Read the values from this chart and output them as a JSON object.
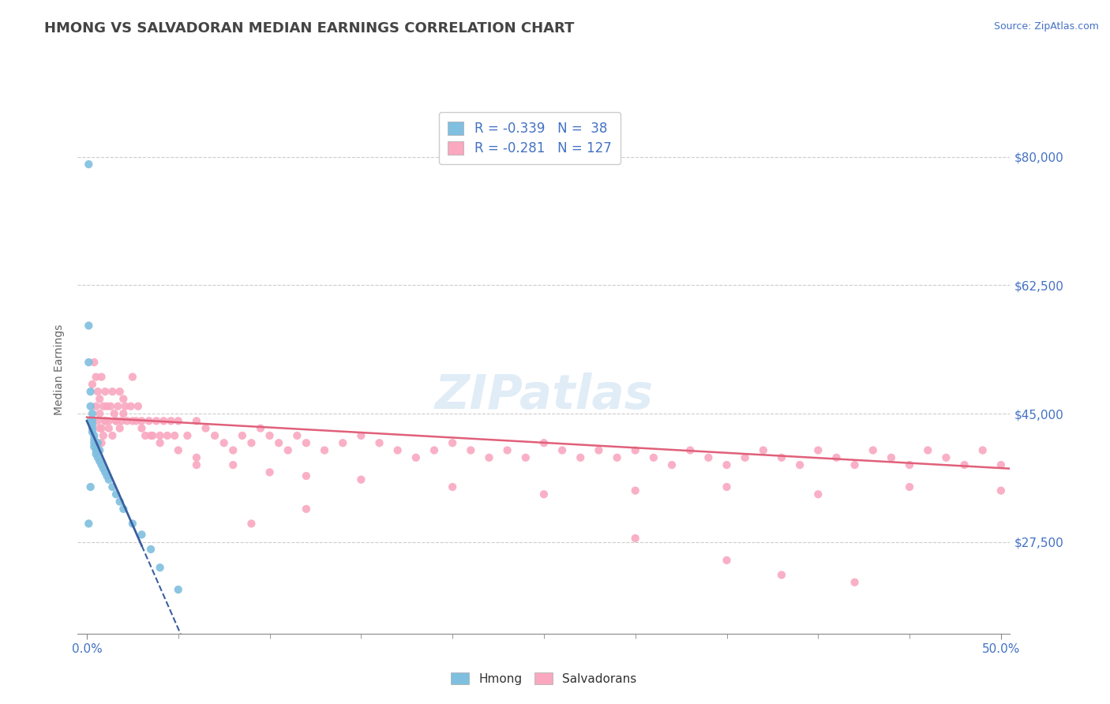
{
  "title": "HMONG VS SALVADORAN MEDIAN EARNINGS CORRELATION CHART",
  "source": "Source: ZipAtlas.com",
  "ylabel": "Median Earnings",
  "xlim": [
    -0.005,
    0.505
  ],
  "ylim": [
    15000,
    87000
  ],
  "yticks": [
    27500,
    45000,
    62500,
    80000
  ],
  "ytick_labels": [
    "$27,500",
    "$45,000",
    "$62,500",
    "$80,000"
  ],
  "xtick_positions": [
    0.0,
    0.5
  ],
  "xtick_labels": [
    "0.0%",
    "50.0%"
  ],
  "hmong_color": "#7fbfdf",
  "salvadoran_color": "#f9a8c0",
  "hmong_trend_color": "#3a5fa0",
  "salvadoran_trend_color": "#e0607a",
  "hmong_R": -0.339,
  "hmong_N": 38,
  "salvadoran_R": -0.281,
  "salvadoran_N": 127,
  "hmong_legend": "Hmong",
  "salvadoran_legend": "Salvadorans",
  "watermark": "ZIPatlas",
  "background_color": "#ffffff",
  "grid_color": "#cccccc",
  "title_color": "#444444",
  "axis_label_color": "#666666",
  "tick_label_color": "#4472c4",
  "hmong_x": [
    0.001,
    0.001,
    0.001,
    0.002,
    0.002,
    0.002,
    0.003,
    0.003,
    0.003,
    0.003,
    0.003,
    0.004,
    0.004,
    0.004,
    0.004,
    0.005,
    0.005,
    0.005,
    0.006,
    0.006,
    0.007,
    0.007,
    0.008,
    0.009,
    0.01,
    0.011,
    0.012,
    0.014,
    0.016,
    0.018,
    0.02,
    0.025,
    0.03,
    0.035,
    0.04,
    0.05,
    0.001,
    0.002
  ],
  "hmong_y": [
    79000,
    57000,
    52000,
    48000,
    46000,
    44000,
    45000,
    44000,
    43500,
    43000,
    42500,
    42000,
    41500,
    41000,
    40500,
    40800,
    40000,
    39500,
    41000,
    39000,
    40000,
    38500,
    38000,
    37500,
    37000,
    36500,
    36000,
    35000,
    34000,
    33000,
    32000,
    30000,
    28500,
    26500,
    24000,
    21000,
    30000,
    35000
  ],
  "salvadoran_x": [
    0.003,
    0.004,
    0.005,
    0.005,
    0.006,
    0.006,
    0.007,
    0.007,
    0.008,
    0.008,
    0.009,
    0.01,
    0.01,
    0.011,
    0.012,
    0.013,
    0.014,
    0.015,
    0.016,
    0.017,
    0.018,
    0.019,
    0.02,
    0.021,
    0.022,
    0.024,
    0.025,
    0.027,
    0.028,
    0.03,
    0.032,
    0.034,
    0.036,
    0.038,
    0.04,
    0.042,
    0.044,
    0.046,
    0.048,
    0.05,
    0.055,
    0.06,
    0.065,
    0.07,
    0.075,
    0.08,
    0.085,
    0.09,
    0.095,
    0.1,
    0.105,
    0.11,
    0.115,
    0.12,
    0.13,
    0.14,
    0.15,
    0.16,
    0.17,
    0.18,
    0.19,
    0.2,
    0.21,
    0.22,
    0.23,
    0.24,
    0.25,
    0.26,
    0.27,
    0.28,
    0.29,
    0.3,
    0.31,
    0.32,
    0.33,
    0.34,
    0.35,
    0.36,
    0.37,
    0.38,
    0.39,
    0.4,
    0.41,
    0.42,
    0.43,
    0.44,
    0.45,
    0.46,
    0.47,
    0.48,
    0.49,
    0.5,
    0.007,
    0.008,
    0.009,
    0.01,
    0.012,
    0.014,
    0.016,
    0.018,
    0.02,
    0.025,
    0.03,
    0.035,
    0.04,
    0.05,
    0.06,
    0.08,
    0.1,
    0.12,
    0.15,
    0.2,
    0.25,
    0.3,
    0.35,
    0.4,
    0.45,
    0.5,
    0.38,
    0.42,
    0.3,
    0.35,
    0.12,
    0.09,
    0.06
  ],
  "salvadoran_y": [
    49000,
    52000,
    50000,
    46000,
    48000,
    44000,
    47000,
    45000,
    50000,
    43000,
    46000,
    48000,
    44000,
    46000,
    44000,
    46000,
    48000,
    45000,
    44000,
    46000,
    48000,
    44000,
    47000,
    46000,
    44000,
    46000,
    50000,
    44000,
    46000,
    44000,
    42000,
    44000,
    42000,
    44000,
    42000,
    44000,
    42000,
    44000,
    42000,
    44000,
    42000,
    44000,
    43000,
    42000,
    41000,
    40000,
    42000,
    41000,
    43000,
    42000,
    41000,
    40000,
    42000,
    41000,
    40000,
    41000,
    42000,
    41000,
    40000,
    39000,
    40000,
    41000,
    40000,
    39000,
    40000,
    39000,
    41000,
    40000,
    39000,
    40000,
    39000,
    40000,
    39000,
    38000,
    40000,
    39000,
    38000,
    39000,
    40000,
    39000,
    38000,
    40000,
    39000,
    38000,
    40000,
    39000,
    38000,
    40000,
    39000,
    38000,
    40000,
    38000,
    43000,
    41000,
    42000,
    44000,
    43000,
    42000,
    44000,
    43000,
    45000,
    44000,
    43000,
    42000,
    41000,
    40000,
    39000,
    38000,
    37000,
    36500,
    36000,
    35000,
    34000,
    34500,
    35000,
    34000,
    35000,
    34500,
    23000,
    22000,
    28000,
    25000,
    32000,
    30000,
    38000
  ]
}
